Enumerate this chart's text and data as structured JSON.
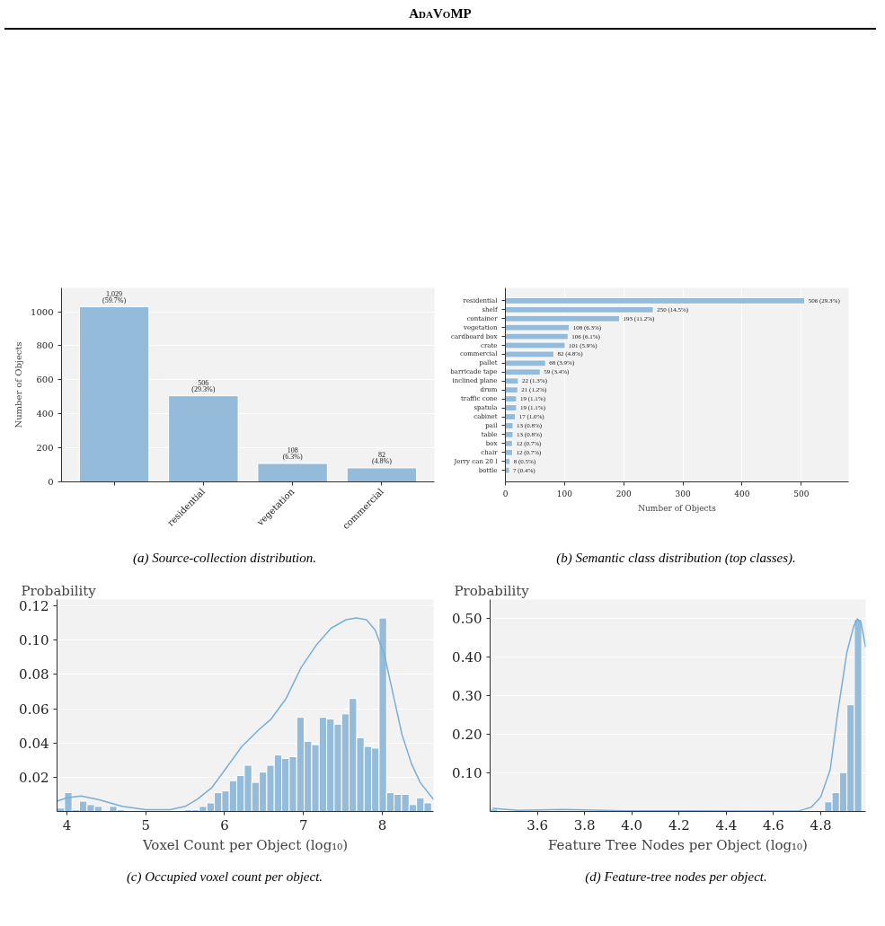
{
  "chart_data": [
    {
      "type": "bar",
      "title": "AdaVoMP",
      "categories": [
        null,
        "residential",
        "vegetation",
        "commercial"
      ],
      "values": [
        1029,
        506,
        108,
        82
      ],
      "color": "#94bbd9",
      "value_labels": [
        "1,029\n(59.7%)",
        "506\n(29.3%)",
        "108\n(6.3%)",
        "82\n(4.8%)"
      ],
      "ylabel": "Number of Objects",
      "ylim": [
        0,
        1140
      ],
      "yticks": [
        0,
        200,
        400,
        600,
        800,
        1000
      ],
      "grid": "y",
      "annotations": [
        "(a) Source-collection distribution."
      ]
    },
    {
      "type": "bar",
      "orientation": "horizontal",
      "categories": [
        "residential",
        "shelf",
        "container",
        "vegetation",
        "cardboard box",
        "crate",
        "commercial",
        "pallet",
        "barricade tape",
        "inclined plane",
        "drum",
        "traffic cone",
        "spatula",
        "cabinet",
        "pail",
        "table",
        "box",
        "chair",
        "Jerry can 20 l",
        "bottle"
      ],
      "values": [
        506,
        250,
        193,
        108,
        106,
        101,
        82,
        68,
        59,
        22,
        21,
        19,
        19,
        17,
        13,
        13,
        12,
        12,
        8,
        7
      ],
      "color": "#94bbd9",
      "value_labels": [
        "506 (29.3%)",
        "250 (14.5%)",
        "193 (11.2%)",
        "108 (6.3%)",
        "106 (6.1%)",
        "101 (5.9%)",
        "82 (4.8%)",
        "68 (3.9%)",
        "59 (3.4%)",
        "22 (1.3%)",
        "21 (1.2%)",
        "19 (1.1%)",
        "19 (1.1%)",
        "17 (1.0%)",
        "13 (0.8%)",
        "13 (0.8%)",
        "12 (0.7%)",
        "12 (0.7%)",
        "8 (0.5%)",
        "7 (0.4%)"
      ],
      "xlabel": "Number of Objects",
      "xlim": [
        0,
        580
      ],
      "xticks": [
        0,
        100,
        200,
        300,
        400,
        500
      ],
      "grid": "x",
      "annotations": [
        "(b) Semantic class distribution (top classes)."
      ]
    },
    {
      "type": "histogram",
      "color": "#94bbd9",
      "bins": [
        3.875,
        3.97,
        4.065,
        4.16,
        4.255,
        4.35,
        4.445,
        4.54,
        4.635,
        4.73,
        4.825,
        4.92,
        5.015,
        5.11,
        5.205,
        5.3,
        5.395,
        5.49,
        5.585,
        5.68,
        5.775,
        5.87,
        5.965,
        6.06,
        6.155,
        6.25,
        6.345,
        6.44,
        6.535,
        6.63,
        6.725,
        6.82,
        6.915,
        7.01,
        7.105,
        7.2,
        7.295,
        7.39,
        7.485,
        7.58,
        7.675,
        7.77,
        7.865,
        7.96,
        8.055,
        8.15,
        8.245,
        8.34,
        8.435,
        8.53,
        8.625
      ],
      "values": [
        0.002,
        0.011,
        0.001,
        0.006,
        0.004,
        0.003,
        0,
        0.003,
        0.001,
        0,
        0,
        0,
        0,
        0,
        0,
        0,
        0,
        0.001,
        0.001,
        0.003,
        0.005,
        0.011,
        0.012,
        0.018,
        0.021,
        0.027,
        0.017,
        0.023,
        0.027,
        0.033,
        0.031,
        0.032,
        0.055,
        0.041,
        0.039,
        0.055,
        0.054,
        0.051,
        0.057,
        0.066,
        0.043,
        0.038,
        0.037,
        0.113,
        0.011,
        0.01,
        0.01,
        0.004,
        0.008,
        0.005
      ],
      "series": [
        {
          "type": "line",
          "color": "#7aaed8",
          "x": [
            3.875,
            4.0,
            4.18,
            4.4,
            4.7,
            5.0,
            5.31,
            5.5,
            5.65,
            5.84,
            6.03,
            6.22,
            6.44,
            6.59,
            6.78,
            6.97,
            7.16,
            7.35,
            7.54,
            7.67,
            7.8,
            7.91,
            8.03,
            8.14,
            8.25,
            8.37,
            8.48,
            8.65
          ],
          "values": [
            0.006,
            0.008,
            0.009,
            0.007,
            0.003,
            0.001,
            0.001,
            0.003,
            0.007,
            0.014,
            0.026,
            0.038,
            0.048,
            0.054,
            0.066,
            0.084,
            0.097,
            0.107,
            0.112,
            0.113,
            0.112,
            0.106,
            0.091,
            0.068,
            0.045,
            0.028,
            0.017,
            0.007
          ]
        }
      ],
      "xlabel": "Voxel Count per Object (log₁₀)",
      "ylabel": "Probability",
      "xlim": [
        3.875,
        8.65
      ],
      "ylim": [
        0,
        0.1238
      ],
      "xticks": [
        4,
        5,
        6,
        7,
        8
      ],
      "yticks": [
        0.02,
        0.04,
        0.06,
        0.08,
        {
          "value": 0.1,
          "label": "0.10"
        },
        0.12
      ],
      "grid": "y",
      "annotations": [
        "(c) Occupied voxel count per object."
      ]
    },
    {
      "type": "histogram",
      "color": "#94bbd9",
      "bins": [
        3.4,
        3.4315,
        3.4629,
        3.4944,
        3.5259,
        3.5574,
        3.5888,
        3.6203,
        3.6518,
        3.6832,
        3.7147,
        3.7462,
        3.7776,
        3.8091,
        3.8406,
        3.8721,
        3.9035,
        3.935,
        3.9665,
        3.9979,
        4.0294,
        4.0609,
        4.0923,
        4.1238,
        4.1553,
        4.1868,
        4.2182,
        4.2497,
        4.2812,
        4.3126,
        4.3441,
        4.3756,
        4.407,
        4.4385,
        4.47,
        4.5015,
        4.5329,
        4.5644,
        4.5959,
        4.6273,
        4.6588,
        4.6903,
        4.7217,
        4.7532,
        4.7847,
        4.8162,
        4.8476,
        4.8791,
        4.9106,
        4.942,
        4.9735
      ],
      "values": [
        0.006,
        0,
        0,
        0,
        0,
        0,
        0,
        0,
        0,
        0,
        0,
        0,
        0,
        0,
        0,
        0,
        0,
        0,
        0,
        0,
        0,
        0,
        0,
        0,
        0,
        0,
        0,
        0,
        0,
        0,
        0,
        0,
        0,
        0,
        0,
        0,
        0,
        0,
        0,
        0,
        0,
        0,
        0,
        0,
        0,
        0.025,
        0.049,
        0.101,
        0.277,
        0.499
      ],
      "series": [
        {
          "type": "line",
          "color": "#7aaed8",
          "x": [
            3.41,
            3.52,
            3.71,
            3.96,
            4.46,
            4.71,
            4.76,
            4.8,
            4.84,
            4.87,
            4.91,
            4.94,
            4.955,
            4.97,
            4.99
          ],
          "values": [
            0.008,
            0.003,
            0.005,
            0.002,
            0.001,
            0.002,
            0.011,
            0.038,
            0.109,
            0.249,
            0.412,
            0.482,
            0.5,
            0.49,
            0.426
          ]
        }
      ],
      "xlabel": "Feature Tree Nodes per Object (log₁₀)",
      "ylabel": "Probability",
      "xlim": [
        3.4,
        4.99
      ],
      "ylim": [
        0,
        0.55
      ],
      "xticks": [
        3.6,
        3.8,
        {
          "value": 4.0,
          "label": "4.0"
        },
        4.2,
        4.4,
        4.6,
        4.8
      ],
      "yticks": [
        {
          "value": 0.1,
          "label": "0.10"
        },
        {
          "value": 0.2,
          "label": "0.20"
        },
        {
          "value": 0.3,
          "label": "0.30"
        },
        {
          "value": 0.4,
          "label": "0.40"
        },
        {
          "value": 0.5,
          "label": "0.50"
        }
      ],
      "grid": "y",
      "annotations": [
        "(d) Feature-tree nodes per object."
      ]
    }
  ]
}
